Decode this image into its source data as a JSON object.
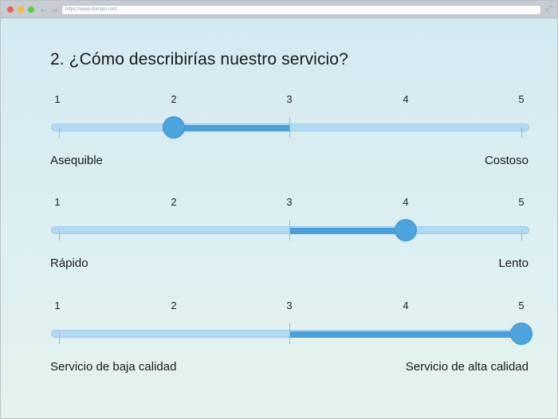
{
  "browser": {
    "address": "https://www.domain.com",
    "back_glyph": "←",
    "forward_glyph": "→",
    "expand_glyph": "⤢"
  },
  "question": "2. ¿Cómo describirías nuestro servicio?",
  "scale_labels": [
    "1",
    "2",
    "3",
    "4",
    "5"
  ],
  "sliders": [
    {
      "value": 2,
      "left_label": "Asequible",
      "right_label": "Costoso"
    },
    {
      "value": 4,
      "left_label": "Rápido",
      "right_label": "Lento"
    },
    {
      "value": 5,
      "left_label": "Servicio de baja calidad",
      "right_label": "Servicio de alta calidad"
    }
  ],
  "colors": {
    "track": "#b3d9f3",
    "fill": "#4a9fd8",
    "thumb": "#4da3dc"
  }
}
